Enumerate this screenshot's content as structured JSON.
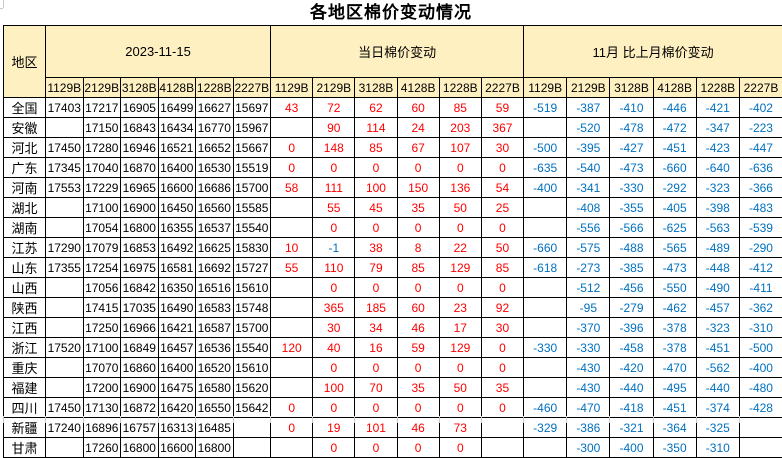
{
  "title": "各地区棉价变动情况",
  "colors": {
    "header_bg": "#fff0c2",
    "border": "#000000",
    "price_text": "#000000",
    "increase_text": "#ff0000",
    "decrease_text": "#0070c0"
  },
  "table": {
    "corner_label": "地区",
    "groups": [
      {
        "label": "2023-11-15"
      },
      {
        "label": "当日棉价变动"
      },
      {
        "label": "11月 比上月棉价变动"
      }
    ],
    "grades": [
      "1129B",
      "2129B",
      "3128B",
      "4128B",
      "1228B",
      "2227B"
    ],
    "rows": [
      {
        "region": "全国",
        "prices": [
          "17403",
          "17217",
          "16905",
          "16499",
          "16627",
          "15697"
        ],
        "daily_change": [
          "43",
          "72",
          "62",
          "60",
          "85",
          "59"
        ],
        "monthly_change": [
          "-519",
          "-387",
          "-410",
          "-446",
          "-421",
          "-402"
        ]
      },
      {
        "region": "安徽",
        "prices": [
          "",
          "17150",
          "16843",
          "16434",
          "16770",
          "15967"
        ],
        "daily_change": [
          "",
          "90",
          "114",
          "24",
          "203",
          "367"
        ],
        "monthly_change": [
          "",
          "-520",
          "-478",
          "-472",
          "-347",
          "-223"
        ]
      },
      {
        "region": "河北",
        "prices": [
          "17450",
          "17280",
          "16946",
          "16521",
          "16652",
          "15667"
        ],
        "daily_change": [
          "0",
          "148",
          "85",
          "67",
          "107",
          "30"
        ],
        "monthly_change": [
          "-500",
          "-395",
          "-427",
          "-451",
          "-423",
          "-447"
        ]
      },
      {
        "region": "广东",
        "prices": [
          "17345",
          "17040",
          "16870",
          "16400",
          "16530",
          "15519"
        ],
        "daily_change": [
          "0",
          "0",
          "0",
          "0",
          "0",
          "0"
        ],
        "monthly_change": [
          "-635",
          "-540",
          "-473",
          "-660",
          "-640",
          "-636"
        ]
      },
      {
        "region": "河南",
        "prices": [
          "17553",
          "17229",
          "16965",
          "16600",
          "16686",
          "15700"
        ],
        "daily_change": [
          "58",
          "111",
          "100",
          "150",
          "136",
          "54"
        ],
        "monthly_change": [
          "-400",
          "-341",
          "-330",
          "-292",
          "-323",
          "-366"
        ]
      },
      {
        "region": "湖北",
        "prices": [
          "",
          "17100",
          "16900",
          "16450",
          "16560",
          "15585"
        ],
        "daily_change": [
          "",
          "55",
          "45",
          "35",
          "50",
          "25"
        ],
        "monthly_change": [
          "",
          "-408",
          "-355",
          "-405",
          "-398",
          "-483"
        ]
      },
      {
        "region": "湖南",
        "prices": [
          "",
          "17054",
          "16800",
          "16355",
          "16537",
          "15540"
        ],
        "daily_change": [
          "",
          "0",
          "0",
          "0",
          "0",
          "0"
        ],
        "monthly_change": [
          "",
          "-556",
          "-566",
          "-625",
          "-563",
          "-539"
        ]
      },
      {
        "region": "江苏",
        "prices": [
          "17290",
          "17079",
          "16853",
          "16492",
          "16625",
          "15830"
        ],
        "daily_change": [
          "10",
          "-1",
          "38",
          "8",
          "22",
          "50"
        ],
        "monthly_change": [
          "-660",
          "-575",
          "-488",
          "-565",
          "-489",
          "-290"
        ]
      },
      {
        "region": "山东",
        "prices": [
          "17355",
          "17254",
          "16975",
          "16581",
          "16692",
          "15727"
        ],
        "daily_change": [
          "55",
          "110",
          "79",
          "85",
          "129",
          "85"
        ],
        "monthly_change": [
          "-618",
          "-273",
          "-385",
          "-473",
          "-448",
          "-412"
        ]
      },
      {
        "region": "山西",
        "prices": [
          "",
          "17056",
          "16842",
          "16350",
          "16516",
          "15610"
        ],
        "daily_change": [
          "",
          "0",
          "0",
          "0",
          "0",
          "0"
        ],
        "monthly_change": [
          "",
          "-512",
          "-456",
          "-550",
          "-490",
          "-411"
        ]
      },
      {
        "region": "陕西",
        "prices": [
          "",
          "17415",
          "17035",
          "16490",
          "16583",
          "15748"
        ],
        "daily_change": [
          "",
          "365",
          "185",
          "60",
          "23",
          "92"
        ],
        "monthly_change": [
          "",
          "-95",
          "-279",
          "-462",
          "-457",
          "-362"
        ]
      },
      {
        "region": "江西",
        "prices": [
          "",
          "17250",
          "16966",
          "16421",
          "16587",
          "15700"
        ],
        "daily_change": [
          "",
          "30",
          "34",
          "46",
          "17",
          "30"
        ],
        "monthly_change": [
          "",
          "-370",
          "-396",
          "-378",
          "-323",
          "-310"
        ]
      },
      {
        "region": "浙江",
        "prices": [
          "17520",
          "17100",
          "16849",
          "16457",
          "16536",
          "15540"
        ],
        "daily_change": [
          "120",
          "40",
          "16",
          "59",
          "129",
          "0"
        ],
        "monthly_change": [
          "-330",
          "-330",
          "-458",
          "-378",
          "-451",
          "-500"
        ]
      },
      {
        "region": "重庆",
        "prices": [
          "",
          "17070",
          "16860",
          "16400",
          "16520",
          "15610"
        ],
        "daily_change": [
          "",
          "0",
          "0",
          "0",
          "0",
          "0"
        ],
        "monthly_change": [
          "",
          "-430",
          "-420",
          "-470",
          "-562",
          "-400"
        ]
      },
      {
        "region": "福建",
        "prices": [
          "",
          "17200",
          "16900",
          "16475",
          "16580",
          "15620"
        ],
        "daily_change": [
          "",
          "100",
          "70",
          "35",
          "50",
          "35"
        ],
        "monthly_change": [
          "",
          "-430",
          "-440",
          "-495",
          "-440",
          "-480"
        ]
      },
      {
        "region": "四川",
        "prices": [
          "17450",
          "17130",
          "16872",
          "16420",
          "16550",
          "15642"
        ],
        "daily_change": [
          "0",
          "0",
          "0",
          "0",
          "0",
          "0"
        ],
        "monthly_change": [
          "-460",
          "-470",
          "-418",
          "-451",
          "-374",
          "-428"
        ]
      },
      {
        "region": "新疆",
        "prices": [
          "17240",
          "16896",
          "16757",
          "16313",
          "16485",
          ""
        ],
        "daily_change": [
          "0",
          "19",
          "101",
          "46",
          "73",
          ""
        ],
        "monthly_change": [
          "-329",
          "-386",
          "-321",
          "-364",
          "-325",
          ""
        ]
      },
      {
        "region": "甘肃",
        "prices": [
          "",
          "17260",
          "16800",
          "16600",
          "16800",
          ""
        ],
        "daily_change": [
          "",
          "0",
          "0",
          "0",
          "0",
          ""
        ],
        "monthly_change": [
          "",
          "-300",
          "-400",
          "-350",
          "-310",
          ""
        ]
      }
    ]
  }
}
